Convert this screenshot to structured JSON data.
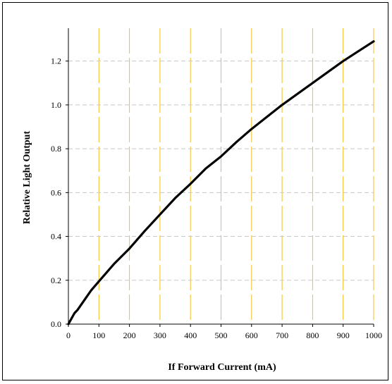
{
  "chart_data": {
    "type": "line",
    "title": "",
    "xlabel": "If Forward Current (mA)",
    "ylabel": "Relative Light Output",
    "xlim": [
      0,
      1000
    ],
    "ylim": [
      0,
      1.35
    ],
    "x_ticks": [
      "0",
      "100",
      "200",
      "300",
      "400",
      "500",
      "600",
      "700",
      "800",
      "900",
      "1000"
    ],
    "y_ticks": [
      "0.0",
      "0.2",
      "0.4",
      "0.6",
      "0.8",
      "1.0",
      "1.2"
    ],
    "grid": true,
    "legend": "none",
    "series": [
      {
        "x": [
          0,
          10,
          20,
          30,
          50,
          75,
          100,
          150,
          200,
          250,
          300,
          350,
          400,
          450,
          500,
          550,
          600,
          650,
          700,
          750,
          800,
          850,
          900,
          950,
          1000
        ],
        "y": [
          0,
          0.025,
          0.05,
          0.065,
          0.105,
          0.155,
          0.195,
          0.275,
          0.345,
          0.425,
          0.5,
          0.575,
          0.64,
          0.71,
          0.765,
          0.83,
          0.89,
          0.945,
          1.0,
          1.05,
          1.1,
          1.15,
          1.2,
          1.245,
          1.29
        ]
      }
    ],
    "colors": {
      "line": "#000000",
      "vgrid": "#f0c020",
      "hgrid": "#c8c8c8",
      "axis": "#000000"
    }
  }
}
